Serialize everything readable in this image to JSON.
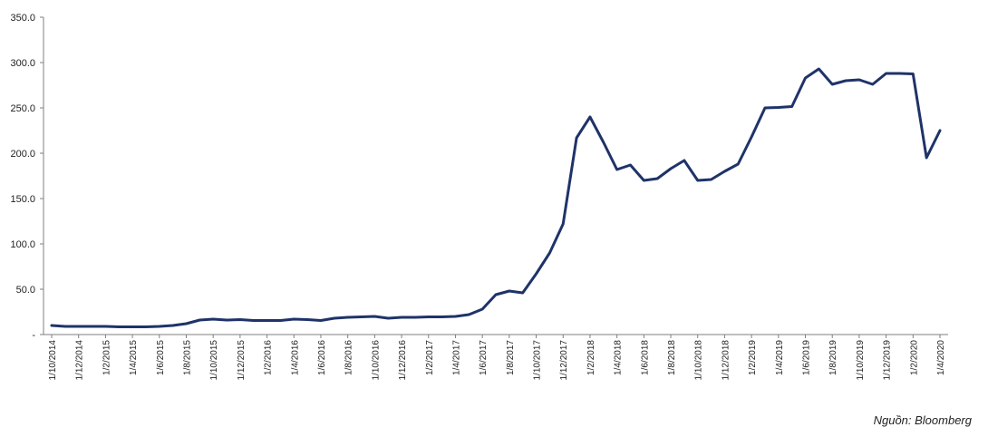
{
  "source_note": "Nguồn: Bloomberg",
  "chart_data": {
    "type": "line",
    "title": "",
    "xlabel": "",
    "ylabel": "",
    "ylim": [
      0,
      350
    ],
    "grid": false,
    "line_color": "#1f3369",
    "y_ticks": [
      "-",
      "50.0",
      "100.0",
      "150.0",
      "200.0",
      "250.0",
      "300.0",
      "350.0"
    ],
    "x_tick_labels": [
      "1/10/2014",
      "1/12/2014",
      "1/2/2015",
      "1/4/2015",
      "1/6/2015",
      "1/8/2015",
      "1/10/2015",
      "1/12/2015",
      "1/2/2016",
      "1/4/2016",
      "1/6/2016",
      "1/8/2016",
      "1/10/2016",
      "1/12/2016",
      "1/2/2017",
      "1/4/2017",
      "1/6/2017",
      "1/8/2017",
      "1/10/2017",
      "1/12/2017",
      "1/2/2018",
      "1/4/2018",
      "1/6/2018",
      "1/8/2018",
      "1/10/2018",
      "1/12/2018",
      "1/2/2019",
      "1/4/2019",
      "1/6/2019",
      "1/8/2019",
      "1/10/2019",
      "1/12/2019",
      "1/2/2020",
      "1/4/2020"
    ],
    "values": [
      10,
      9,
      9,
      9,
      9,
      8.5,
      8.5,
      8.5,
      9,
      10,
      12,
      16,
      17,
      16,
      16.5,
      15.5,
      15.5,
      15.5,
      17,
      16.5,
      15.5,
      18,
      19,
      19.5,
      20,
      18,
      19,
      19,
      19.5,
      19.5,
      20,
      22,
      28,
      44,
      48,
      46,
      67,
      90,
      122,
      217,
      240,
      212,
      182,
      187,
      170,
      172,
      183,
      192,
      170,
      171,
      180,
      188,
      218,
      250,
      250.5,
      251.5,
      283,
      293,
      276,
      280,
      281,
      276,
      288,
      288,
      287.5,
      195,
      225
    ]
  }
}
